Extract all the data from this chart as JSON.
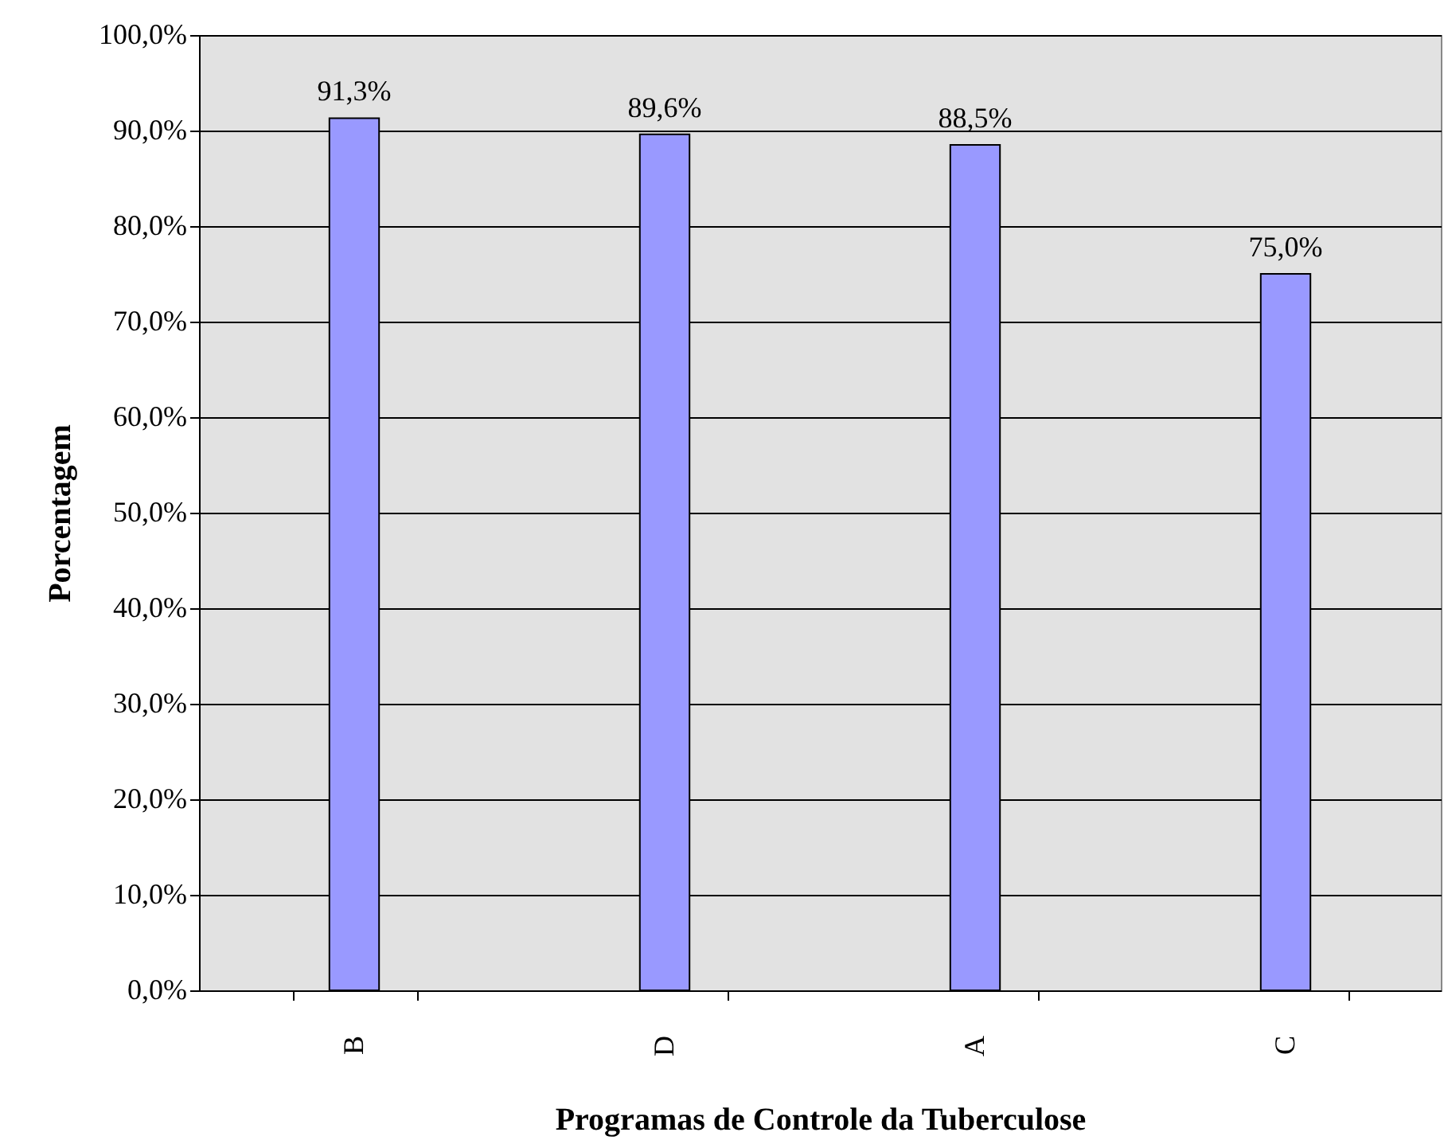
{
  "chart_data": {
    "type": "bar",
    "xlabel": "Programas de Controle da Tuberculose",
    "ylabel": "Porcentagem",
    "categories": [
      "B",
      "D",
      "A",
      "C"
    ],
    "values": [
      91.3,
      89.6,
      88.5,
      75.0
    ],
    "value_labels": [
      "91,3%",
      "89,6%",
      "88,5%",
      "75,0%"
    ],
    "color": "#9999ff",
    "ylim": [
      0,
      100
    ],
    "yticks": [
      {
        "value": 0,
        "label": "0,0%"
      },
      {
        "value": 10,
        "label": "10,0%"
      },
      {
        "value": 20,
        "label": "20,0%"
      },
      {
        "value": 30,
        "label": "30,0%"
      },
      {
        "value": 40,
        "label": "40,0%"
      },
      {
        "value": 50,
        "label": "50,0%"
      },
      {
        "value": 60,
        "label": "60,0%"
      },
      {
        "value": 70,
        "label": "70,0%"
      },
      {
        "value": 80,
        "label": "80,0%"
      },
      {
        "value": 90,
        "label": "90,0%"
      },
      {
        "value": 100,
        "label": "100,0%"
      }
    ],
    "grid": "y"
  }
}
